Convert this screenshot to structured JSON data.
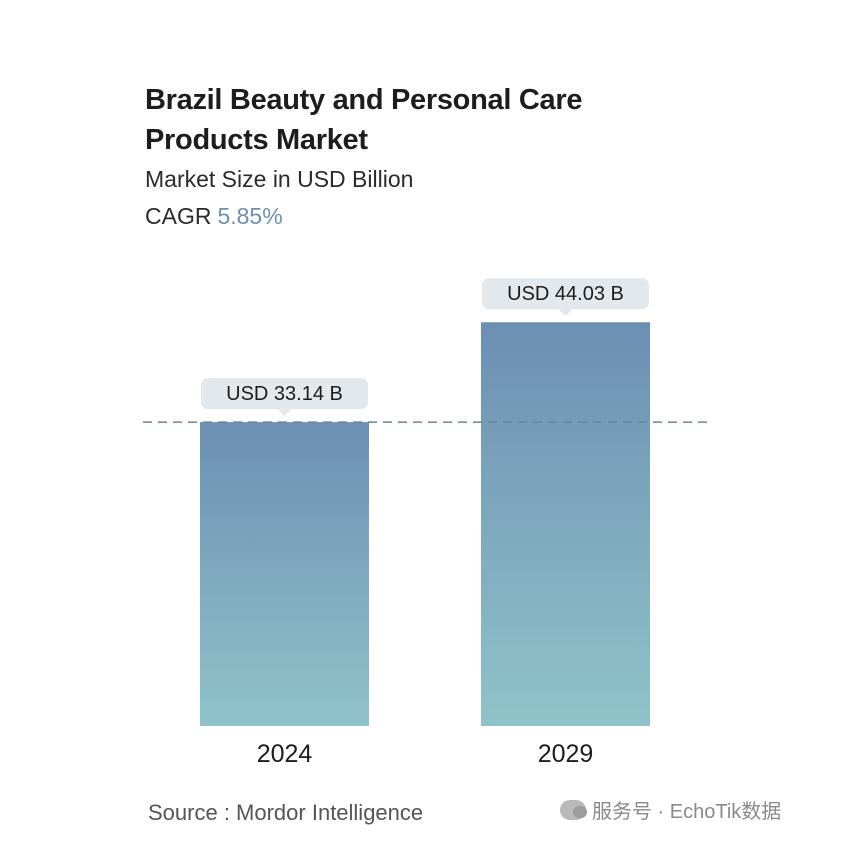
{
  "header": {
    "title": "Brazil Beauty and Personal Care Products Market",
    "subtitle": "Market Size in USD Billion",
    "cagr_label": "CAGR",
    "cagr_value": "5.85%"
  },
  "footer": {
    "source": "Source :  Mordor Intelligence",
    "watermark": "服务号 · EchoTik数据"
  },
  "colors": {
    "bar_top": "#6c8fb3",
    "bar_bottom": "#8fc3c9",
    "label_bg": "#e3e8ec",
    "dashed_line": "#6b8399",
    "cagr_accent": "#6f8fb0"
  },
  "chart_data": {
    "type": "bar",
    "categories": [
      "2024",
      "2029"
    ],
    "values": [
      33.14,
      44.03
    ],
    "value_labels": [
      "USD 33.14 B",
      "USD 44.03 B"
    ],
    "ylim": [
      0,
      56
    ],
    "reference_line": 33.14,
    "grid": false
  }
}
